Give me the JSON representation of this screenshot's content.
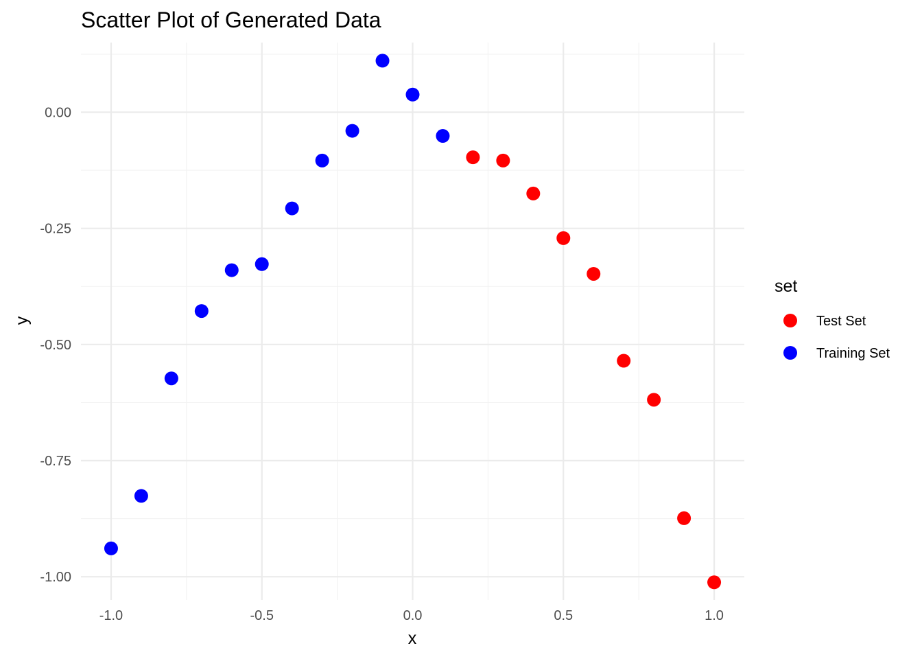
{
  "chart_data": {
    "type": "scatter",
    "title": "Scatter Plot of Generated Data",
    "xlabel": "x",
    "ylabel": "y",
    "xlim": [
      -1.1,
      1.1
    ],
    "ylim": [
      -1.05,
      0.15
    ],
    "x_ticks": [
      -1.0,
      -0.5,
      0.0,
      0.5,
      1.0
    ],
    "x_tick_labels": [
      "-1.0",
      "-0.5",
      "0.0",
      "0.5",
      "1.0"
    ],
    "y_ticks": [
      -1.0,
      -0.75,
      -0.5,
      -0.25,
      0.0
    ],
    "y_tick_labels": [
      "-1.00",
      "-0.75",
      "-0.50",
      "-0.25",
      "0.00"
    ],
    "grid": true,
    "legend": {
      "title": "set",
      "position": "right"
    },
    "series": [
      {
        "name": "Test Set",
        "color": "#ff0000",
        "points": [
          [
            0.2,
            -0.097
          ],
          [
            0.3,
            -0.104
          ],
          [
            0.4,
            -0.175
          ],
          [
            0.5,
            -0.271
          ],
          [
            0.6,
            -0.348
          ],
          [
            0.7,
            -0.535
          ],
          [
            0.8,
            -0.619
          ],
          [
            0.9,
            -0.874
          ],
          [
            1.0,
            -1.012
          ]
        ]
      },
      {
        "name": "Training Set",
        "color": "#0000ff",
        "points": [
          [
            -1.0,
            -0.939
          ],
          [
            -0.9,
            -0.826
          ],
          [
            -0.8,
            -0.573
          ],
          [
            -0.7,
            -0.428
          ],
          [
            -0.6,
            -0.34
          ],
          [
            -0.5,
            -0.327
          ],
          [
            -0.4,
            -0.207
          ],
          [
            -0.3,
            -0.104
          ],
          [
            -0.2,
            -0.04
          ],
          [
            -0.1,
            0.111
          ],
          [
            0.0,
            0.038
          ],
          [
            0.1,
            -0.051
          ]
        ]
      }
    ]
  }
}
